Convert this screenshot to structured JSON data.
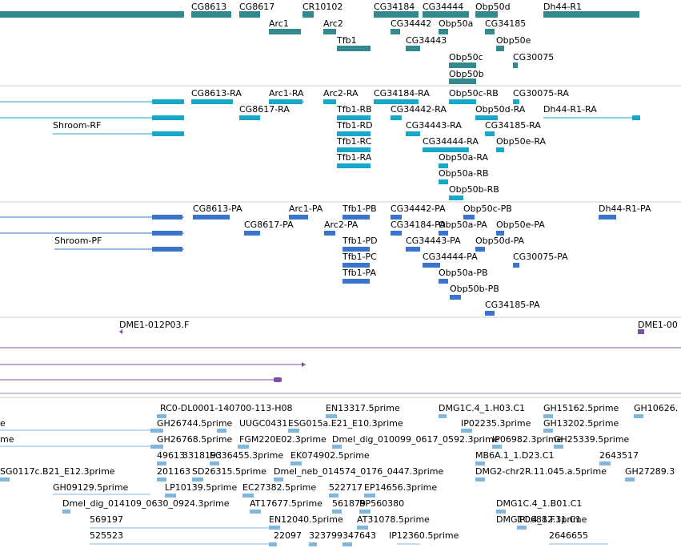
{
  "colors": {
    "gene": "#338a8e",
    "transcript": "#16a8c8",
    "protein": "#3a74cf",
    "clone": "#7b4fa8",
    "est": "#80b8dc",
    "separator": "#cfcfcf",
    "separator_dark": "#9e87b8"
  },
  "tracks": {
    "genes": [
      "CG8613",
      "CG8617",
      "CR10102",
      "CG34184",
      "CG34444",
      "Obp50d",
      "Dh44-R1",
      "Arc1",
      "Arc2",
      "CG34442",
      "Obp50a",
      "CG34185",
      "Tfb1",
      "CG34443",
      "Obp50e",
      "Obp50c",
      "CG30075",
      "Obp50b"
    ],
    "transcripts": [
      "CG8613-RA",
      "Arc1-RA",
      "Arc2-RA",
      "CG34184-RA",
      "Obp50c-RB",
      "CG30075-RA",
      "CG8617-RA",
      "Tfb1-RB",
      "CG34442-RA",
      "Obp50d-RA",
      "Dh44-R1-RA",
      "Shroom-RF",
      "Tfb1-RD",
      "CG34443-RA",
      "CG34185-RA",
      "Tfb1-RC",
      "CG34444-RA",
      "Obp50e-RA",
      "Tfb1-RA",
      "Obp50a-RA",
      "Obp50a-RB",
      "Obp50b-RB"
    ],
    "proteins": [
      "CG8613-PA",
      "Arc1-PA",
      "Tfb1-PB",
      "CG34442-PA",
      "Obp50c-PB",
      "Dh44-R1-PA",
      "CG8617-PA",
      "Arc2-PA",
      "CG34184-PA",
      "Obp50a-PA",
      "Obp50e-PA",
      "Shroom-PF",
      "Tfb1-PD",
      "CG34443-PA",
      "Obp50d-PA",
      "Tfb1-PC",
      "CG34444-PA",
      "CG30075-PA",
      "Tfb1-PA",
      "Obp50a-PB",
      "Obp50b-PB",
      "CG34185-PA"
    ],
    "clones": [
      "DME1-012P03.F",
      "DME1-00"
    ],
    "ests": [
      "RC0-DL0001-140700-113-H08",
      "EN13317.5prime",
      "DMG1C.4_1.H03.C1",
      "GH15162.5prime",
      "GH10626.",
      "e",
      "GH26744.5prime",
      "UUGC0431",
      "ESG015a.E21_E10.3prime",
      "IP02235.3prime",
      "GH13202.5prime",
      "me",
      "GH26768.5prime",
      "FGM220E02.3prime",
      "Dmel_dig_010099_0617_0592.3prime",
      "IP06982.3prime",
      "GH25339.5prime",
      "49613",
      "3318193",
      "EC36455.3prime",
      "EK074902.5prime",
      "MB6A.1_1.D23.C1",
      "2643517",
      "SG0117c.B21_E12.3prime",
      "201163",
      "SD26315.5prime",
      "Dmel_neb_014574_0176_0447.3prime",
      "DMG2-chr2R.11.045.a.5prime",
      "GH27289.3",
      "GH09129.5prime",
      "LP10139.5prime",
      "EC27382.5prime",
      "522717",
      "EP14656.3prime",
      "Dmel_dig_014109_0630_0924.3prime",
      "AT17677.5prime",
      "561879",
      "BP560380",
      "DMG1C.4_1.B01.C1",
      "569197",
      "EN12040.5prime",
      "AT31078.5prime",
      "DMG1C.4_1.F11.C1",
      "IP06882.3prime",
      "525523",
      "22097",
      "323799",
      "347643",
      "IP12360.5prime",
      "2646655"
    ]
  }
}
